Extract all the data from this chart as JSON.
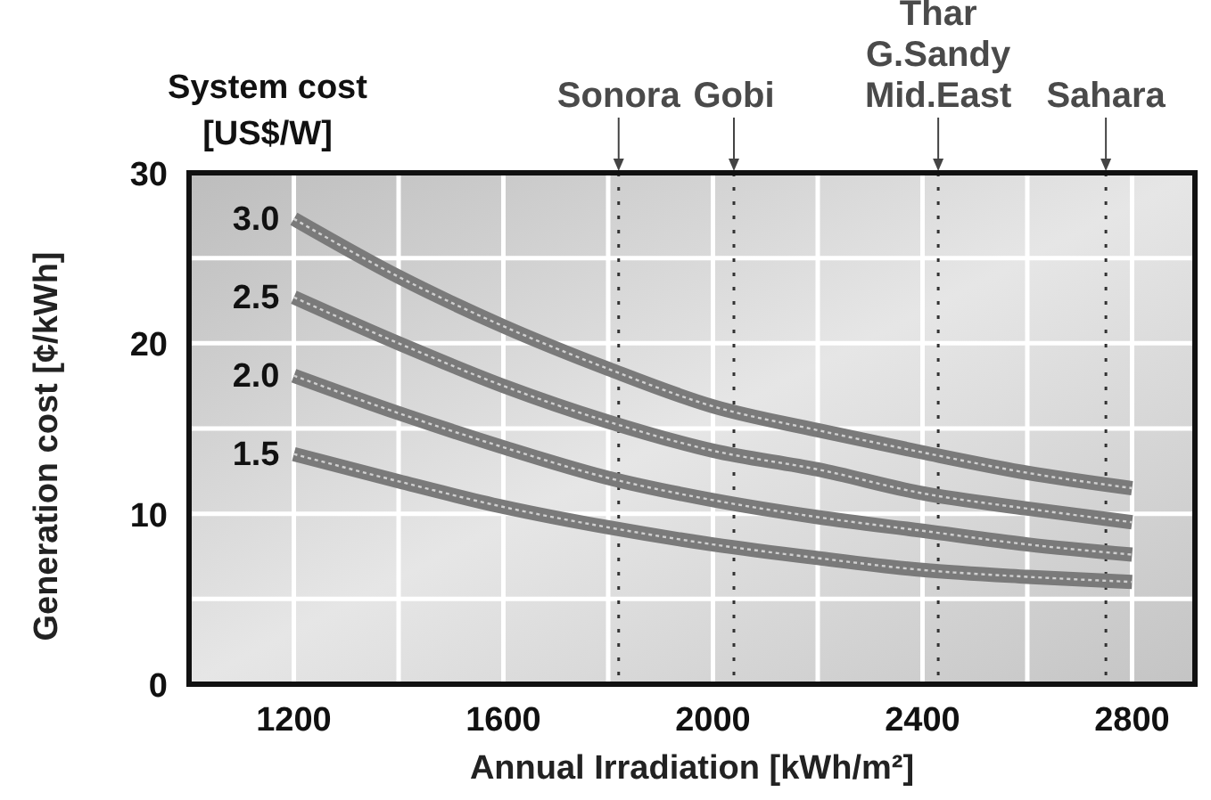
{
  "chart_data": {
    "type": "line",
    "xlabel": "Annual Irradiation [kWh/m²]",
    "ylabel": "Generation cost [¢/kWh]",
    "legend_title": "System cost\n[US$/W]",
    "x": [
      1200,
      1400,
      1600,
      1800,
      2000,
      2200,
      2400,
      2600,
      2800
    ],
    "series": [
      {
        "name": "3.0",
        "color": "#7a7a7a",
        "values": [
          27.3,
          23.9,
          21.0,
          18.5,
          16.3,
          14.9,
          13.6,
          12.4,
          11.5
        ]
      },
      {
        "name": "2.5",
        "color": "#7a7a7a",
        "values": [
          22.7,
          20.0,
          17.5,
          15.4,
          13.7,
          12.6,
          11.2,
          10.3,
          9.5
        ]
      },
      {
        "name": "2.0",
        "color": "#7a7a7a",
        "values": [
          18.1,
          15.9,
          13.9,
          12.1,
          10.8,
          9.8,
          9.0,
          8.2,
          7.6
        ]
      },
      {
        "name": "1.5",
        "color": "#7a7a7a",
        "values": [
          13.5,
          11.9,
          10.4,
          9.2,
          8.2,
          7.4,
          6.7,
          6.3,
          6.0
        ]
      }
    ],
    "xlim": [
      1000,
      2920
    ],
    "xticks": [
      1200,
      {
        "value": 1400,
        "label": null
      },
      1600,
      {
        "value": 1800,
        "label": null
      },
      2000,
      {
        "value": 2200,
        "label": null
      },
      2400,
      {
        "value": 2600,
        "label": null
      },
      2800
    ],
    "ylim": [
      0,
      30
    ],
    "yticks": [
      0,
      {
        "value": 5,
        "label": null
      },
      10,
      {
        "value": 15,
        "label": null
      },
      20,
      {
        "value": 25,
        "label": null
      },
      30
    ],
    "grid": true,
    "line_style": "solid",
    "ref_lines": [
      {
        "axis": "x",
        "value": 1820,
        "label": "Sonora",
        "line_style": "dotted",
        "color": "#333333"
      },
      {
        "axis": "x",
        "value": 2040,
        "label": "Gobi",
        "line_style": "dotted",
        "color": "#333333"
      },
      {
        "axis": "x",
        "value": 2430,
        "label": "Thar\nG.Sandy\nMid.East",
        "line_style": "dotted",
        "color": "#333333"
      },
      {
        "axis": "x",
        "value": 2750,
        "label": "Sahara",
        "line_style": "dotted",
        "color": "#333333"
      }
    ]
  }
}
